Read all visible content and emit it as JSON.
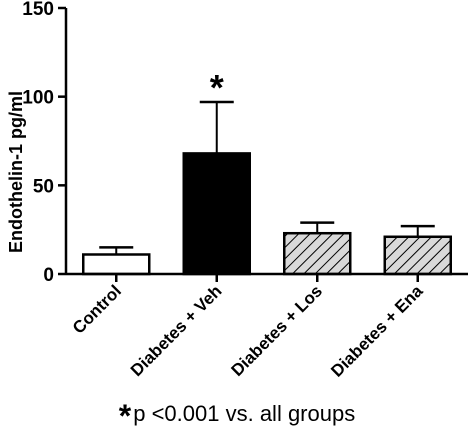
{
  "chart_data": {
    "type": "bar",
    "ylabel": "Endothelin-1 pg/ml",
    "xlabel": "",
    "ylim": [
      0,
      150
    ],
    "yticks": [
      "0",
      "50",
      "100",
      "150"
    ],
    "categories": [
      "Control",
      "Diabetes + Veh",
      "Diabetes + Los",
      "Diabetes + Ena"
    ],
    "values": [
      11,
      68,
      23,
      21
    ],
    "error_upper": [
      15,
      97,
      29,
      27
    ],
    "fills": [
      "white",
      "black",
      "hatched",
      "hatched"
    ],
    "annotations": [
      {
        "category": "Diabetes + Veh",
        "text": "*"
      }
    ],
    "grid": false,
    "footnote": {
      "symbol": "*",
      "text": "p <0.001 vs. all groups"
    }
  },
  "colors": {
    "bar_edge": "#000000",
    "solid_fill": "#000000",
    "open_fill": "#ffffff",
    "hatch_bg": "#d9d9d9"
  }
}
